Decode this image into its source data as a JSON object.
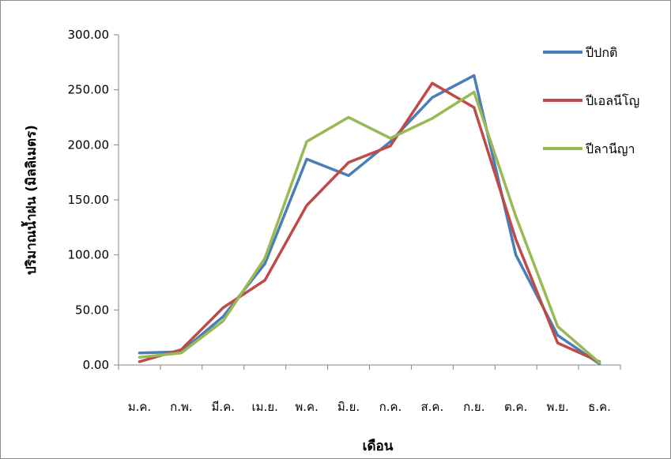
{
  "chart_data": {
    "type": "line",
    "title": "",
    "xlabel": "เดือน",
    "ylabel": "ปริมาณน้ำฝน (มิลลิเมตร)",
    "ylim": [
      0,
      300
    ],
    "yticks": [
      "0.00",
      "50.00",
      "100.00",
      "150.00",
      "200.00",
      "250.00",
      "300.00"
    ],
    "categories": [
      "ม.ค.",
      "ก.พ.",
      "มี.ค.",
      "เม.ย.",
      "พ.ค.",
      "มิ.ย.",
      "ก.ค.",
      "ส.ค.",
      "ก.ย.",
      "ต.ค.",
      "พ.ย.",
      "ธ.ค."
    ],
    "grid": false,
    "legend_position": "top-right",
    "series": [
      {
        "name": "ปีปกติ",
        "color": "#4a7ebb",
        "values": [
          11,
          12,
          44,
          92,
          187,
          172,
          203,
          243,
          263,
          100,
          27,
          1
        ]
      },
      {
        "name": "ปีเอลนีโญ",
        "color": "#be4b48",
        "values": [
          3,
          14,
          52,
          77,
          145,
          184,
          199,
          256,
          234,
          114,
          20,
          3
        ]
      },
      {
        "name": "ปีลานีญา",
        "color": "#98b954",
        "values": [
          7,
          11,
          40,
          97,
          203,
          225,
          206,
          224,
          248,
          135,
          35,
          2
        ]
      }
    ]
  }
}
